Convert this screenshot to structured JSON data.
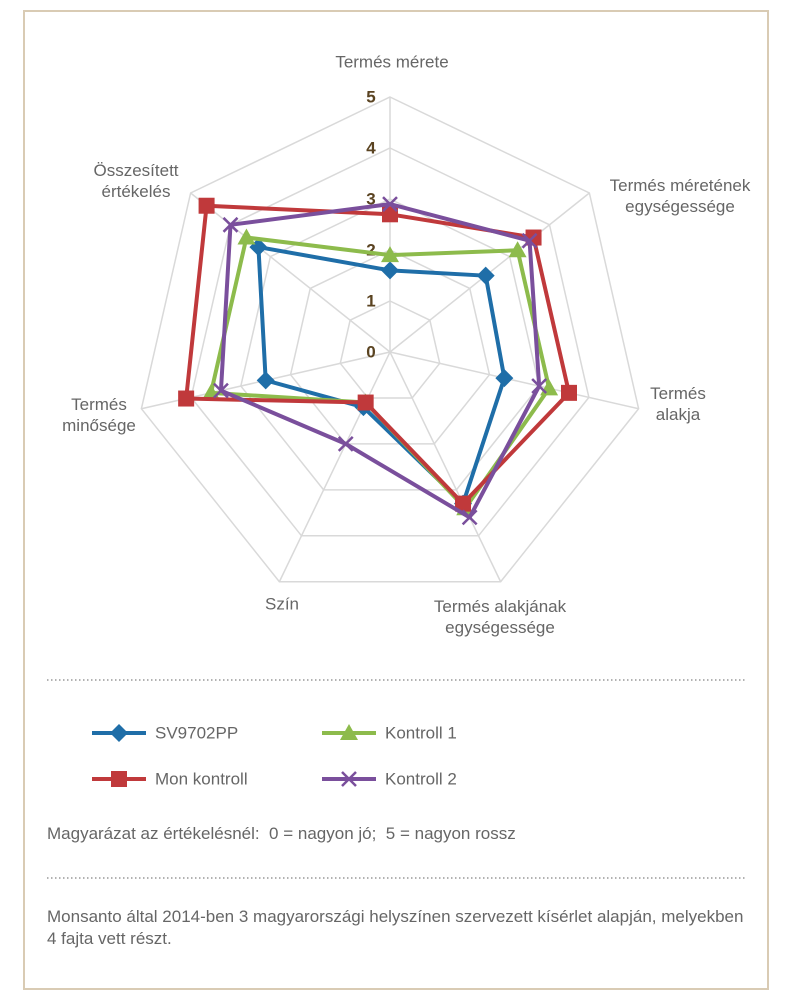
{
  "chart_data": {
    "type": "radar",
    "categories": [
      "Termés mérete",
      "Termés méretének egységessége",
      "Termés alakja",
      "Termés alakjának egységessége",
      "Szín",
      "Termés minősége",
      "Összesített értékelés"
    ],
    "rlim": [
      0,
      5
    ],
    "rticks": [
      0,
      1,
      2,
      3,
      4,
      5
    ],
    "grid": true,
    "legend": "bottom",
    "series": [
      {
        "name": "SV9702PP",
        "color": "#1f6ea8",
        "marker": "diamond",
        "values": [
          1.6,
          2.4,
          2.3,
          3.3,
          1.2,
          2.5,
          3.3
        ]
      },
      {
        "name": "Kontroll 1",
        "color": "#8dbb4c",
        "marker": "triangle",
        "values": [
          1.9,
          3.2,
          3.2,
          3.4,
          1.1,
          3.6,
          3.6
        ]
      },
      {
        "name": "Mon kontroll",
        "color": "#c0393b",
        "marker": "square",
        "values": [
          2.7,
          3.6,
          3.6,
          3.3,
          1.1,
          4.1,
          4.6
        ]
      },
      {
        "name": "Kontroll 2",
        "color": "#7a4f9c",
        "marker": "x",
        "values": [
          2.9,
          3.5,
          3.0,
          3.6,
          2.0,
          3.4,
          4.0
        ]
      }
    ]
  },
  "note": "Magyarázat az értékelésnél:  0 = nagyon jó;  5 = nagyon rossz",
  "source": "Monsanto által 2014-ben 3 magyarországi helyszínen szervezett kísérlet alapján, melyekben 4 fajta vett részt."
}
